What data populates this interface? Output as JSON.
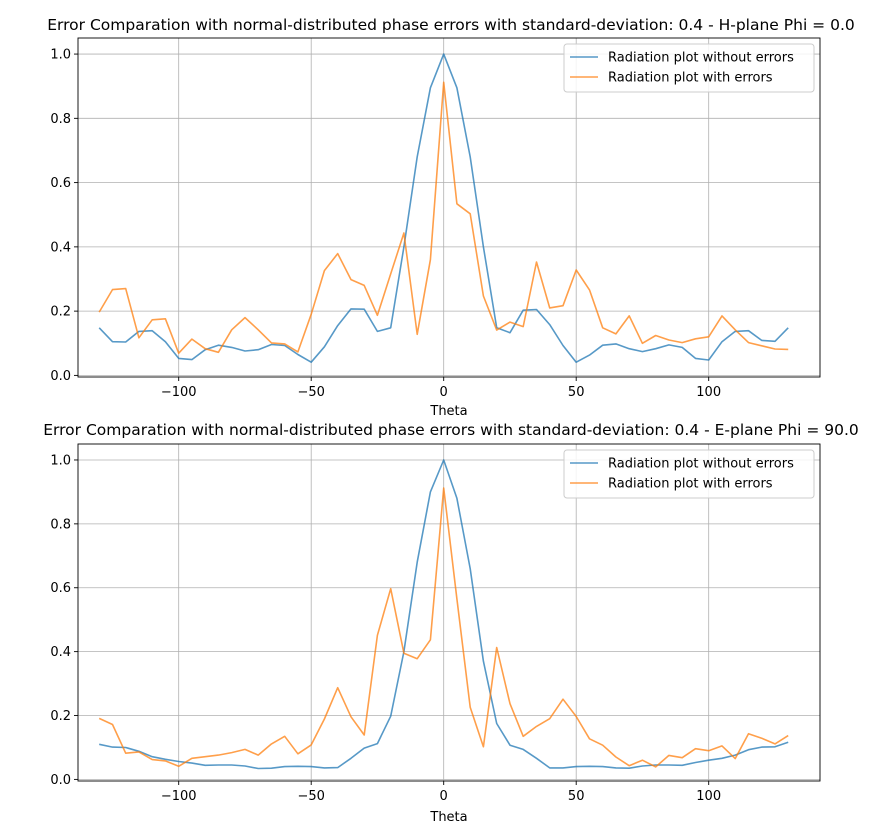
{
  "chart_data": [
    {
      "type": "line",
      "title": "Error Comparation with normal-distributed phase errors with standard-deviation: 0.4 - H-plane Phi = 0.0",
      "xlabel": "Theta",
      "ylabel": "",
      "xlim": [
        -138,
        142
      ],
      "ylim": [
        -0.005,
        1.05
      ],
      "xticks": [
        -100,
        -50,
        0,
        50,
        100
      ],
      "xtick_labels": [
        "−100",
        "−50",
        "0",
        "50",
        "100"
      ],
      "yticks": [
        0.0,
        0.2,
        0.4,
        0.6,
        0.8,
        1.0
      ],
      "ytick_labels": [
        "0.0",
        "0.2",
        "0.4",
        "0.6",
        "0.8",
        "1.0"
      ],
      "grid": true,
      "legend": "top-right",
      "x": [
        -130,
        -125,
        -120,
        -115,
        -110,
        -105,
        -100,
        -95,
        -90,
        -85,
        -80,
        -75,
        -70,
        -65,
        -60,
        -55,
        -50,
        -45,
        -40,
        -35,
        -30,
        -25,
        -20,
        -15,
        -10,
        -5,
        0,
        5,
        10,
        15,
        20,
        25,
        30,
        35,
        40,
        45,
        50,
        55,
        60,
        65,
        70,
        75,
        80,
        85,
        90,
        95,
        100,
        105,
        110,
        115,
        120,
        125,
        130
      ],
      "series": [
        {
          "name": "Radiation plot without errors",
          "color": "#1f77b4",
          "values": [
            0.148,
            0.105,
            0.104,
            0.137,
            0.139,
            0.105,
            0.053,
            0.049,
            0.08,
            0.094,
            0.087,
            0.076,
            0.08,
            0.096,
            0.093,
            0.065,
            0.041,
            0.089,
            0.155,
            0.207,
            0.206,
            0.137,
            0.148,
            0.4,
            0.68,
            0.895,
            1.0,
            0.895,
            0.68,
            0.4,
            0.148,
            0.133,
            0.203,
            0.205,
            0.158,
            0.093,
            0.041,
            0.063,
            0.094,
            0.098,
            0.083,
            0.074,
            0.083,
            0.095,
            0.087,
            0.053,
            0.048,
            0.105,
            0.137,
            0.139,
            0.109,
            0.106,
            0.148
          ]
        },
        {
          "name": "Radiation plot with errors",
          "color": "#ff7f0e",
          "values": [
            0.197,
            0.267,
            0.27,
            0.117,
            0.173,
            0.176,
            0.069,
            0.113,
            0.083,
            0.072,
            0.142,
            0.18,
            0.142,
            0.101,
            0.098,
            0.073,
            0.19,
            0.326,
            0.379,
            0.298,
            0.28,
            0.187,
            0.316,
            0.443,
            0.128,
            0.36,
            0.912,
            0.534,
            0.503,
            0.247,
            0.141,
            0.166,
            0.152,
            0.353,
            0.21,
            0.217,
            0.328,
            0.266,
            0.148,
            0.129,
            0.185,
            0.1,
            0.124,
            0.11,
            0.102,
            0.114,
            0.12,
            0.185,
            0.142,
            0.102,
            0.092,
            0.082,
            0.081
          ]
        }
      ]
    },
    {
      "type": "line",
      "title": "Error Comparation with normal-distributed phase errors with standard-deviation: 0.4 - E-plane Phi = 90.0",
      "xlabel": "Theta",
      "ylabel": "",
      "xlim": [
        -138,
        142
      ],
      "ylim": [
        -0.005,
        1.05
      ],
      "xticks": [
        -100,
        -50,
        0,
        50,
        100
      ],
      "xtick_labels": [
        "−100",
        "−50",
        "0",
        "50",
        "100"
      ],
      "yticks": [
        0.0,
        0.2,
        0.4,
        0.6,
        0.8,
        1.0
      ],
      "ytick_labels": [
        "0.0",
        "0.2",
        "0.4",
        "0.6",
        "0.8",
        "1.0"
      ],
      "grid": true,
      "legend": "top-right",
      "x": [
        -130,
        -125,
        -120,
        -115,
        -110,
        -105,
        -100,
        -95,
        -90,
        -85,
        -80,
        -75,
        -70,
        -65,
        -60,
        -55,
        -50,
        -45,
        -40,
        -35,
        -30,
        -25,
        -20,
        -15,
        -10,
        -5,
        0,
        5,
        10,
        15,
        20,
        25,
        30,
        35,
        40,
        45,
        50,
        55,
        60,
        65,
        70,
        75,
        80,
        85,
        90,
        95,
        100,
        105,
        110,
        115,
        120,
        125,
        130
      ],
      "series": [
        {
          "name": "Radiation plot without errors",
          "color": "#1f77b4",
          "values": [
            0.11,
            0.101,
            0.1,
            0.088,
            0.071,
            0.063,
            0.056,
            0.051,
            0.044,
            0.045,
            0.045,
            0.042,
            0.034,
            0.035,
            0.04,
            0.041,
            0.04,
            0.036,
            0.037,
            0.066,
            0.098,
            0.112,
            0.198,
            0.4,
            0.68,
            0.9,
            1.0,
            0.88,
            0.66,
            0.37,
            0.175,
            0.107,
            0.094,
            0.066,
            0.036,
            0.036,
            0.04,
            0.041,
            0.04,
            0.036,
            0.035,
            0.042,
            0.045,
            0.045,
            0.044,
            0.053,
            0.06,
            0.066,
            0.076,
            0.093,
            0.101,
            0.102,
            0.116
          ]
        },
        {
          "name": "Radiation plot with errors",
          "color": "#ff7f0e",
          "values": [
            0.191,
            0.172,
            0.082,
            0.086,
            0.062,
            0.058,
            0.041,
            0.066,
            0.071,
            0.076,
            0.084,
            0.094,
            0.076,
            0.111,
            0.135,
            0.08,
            0.108,
            0.189,
            0.287,
            0.196,
            0.139,
            0.451,
            0.597,
            0.395,
            0.378,
            0.437,
            0.912,
            0.565,
            0.226,
            0.102,
            0.413,
            0.237,
            0.135,
            0.166,
            0.19,
            0.251,
            0.197,
            0.127,
            0.107,
            0.07,
            0.043,
            0.06,
            0.039,
            0.075,
            0.068,
            0.096,
            0.09,
            0.105,
            0.065,
            0.143,
            0.129,
            0.111,
            0.137
          ]
        }
      ]
    }
  ]
}
